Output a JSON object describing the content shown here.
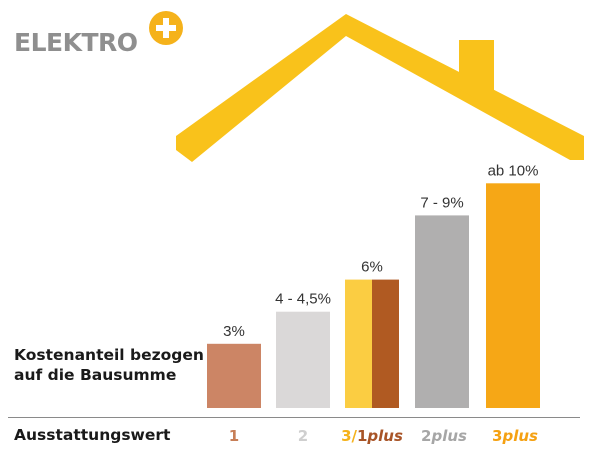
{
  "brand": {
    "logo_text": "ELEKTRO",
    "plus_color": "#f5b21b",
    "text_color": "#8f8f8f"
  },
  "house_color": "#f9c21b",
  "labels": {
    "cost_share": "Kostenanteil bezogen auf die Bausumme",
    "category_axis": "Ausstattungswert"
  },
  "chart_data": {
    "type": "bar",
    "ylabel": "Kostenanteil bezogen auf die Bausumme",
    "xlabel": "Ausstattungswert",
    "value_unit": "% der Bausumme",
    "categories": [
      {
        "num": "1",
        "suffix": "",
        "color": "#c77e57"
      },
      {
        "num": "2",
        "suffix": "",
        "color": "#cfcfcf"
      },
      {
        "num": "3/",
        "num2": "1",
        "suffix": "plus",
        "color": "#f5b21b",
        "color2": "#a85427"
      },
      {
        "num": "2",
        "suffix": "plus",
        "color": "#a6a6a6"
      },
      {
        "num": "3",
        "suffix": "plus",
        "color": "#f5a112"
      }
    ],
    "bars": [
      {
        "category": "1",
        "value": 3,
        "label": "3%",
        "colors": [
          "#cc8565"
        ]
      },
      {
        "category": "2",
        "value": 4.5,
        "label": "4 - 4,5%",
        "colors": [
          "#dad8d8"
        ]
      },
      {
        "category": "3/1plus",
        "value": 6,
        "label": "6%",
        "colors": [
          "#fbcd42",
          "#b05a22"
        ]
      },
      {
        "category": "2plus",
        "value": 9,
        "label": "7 - 9%",
        "colors": [
          "#b0afaf"
        ]
      },
      {
        "category": "3plus",
        "value": 10.5,
        "label": "ab 10%",
        "colors": [
          "#f6a716"
        ]
      }
    ]
  }
}
